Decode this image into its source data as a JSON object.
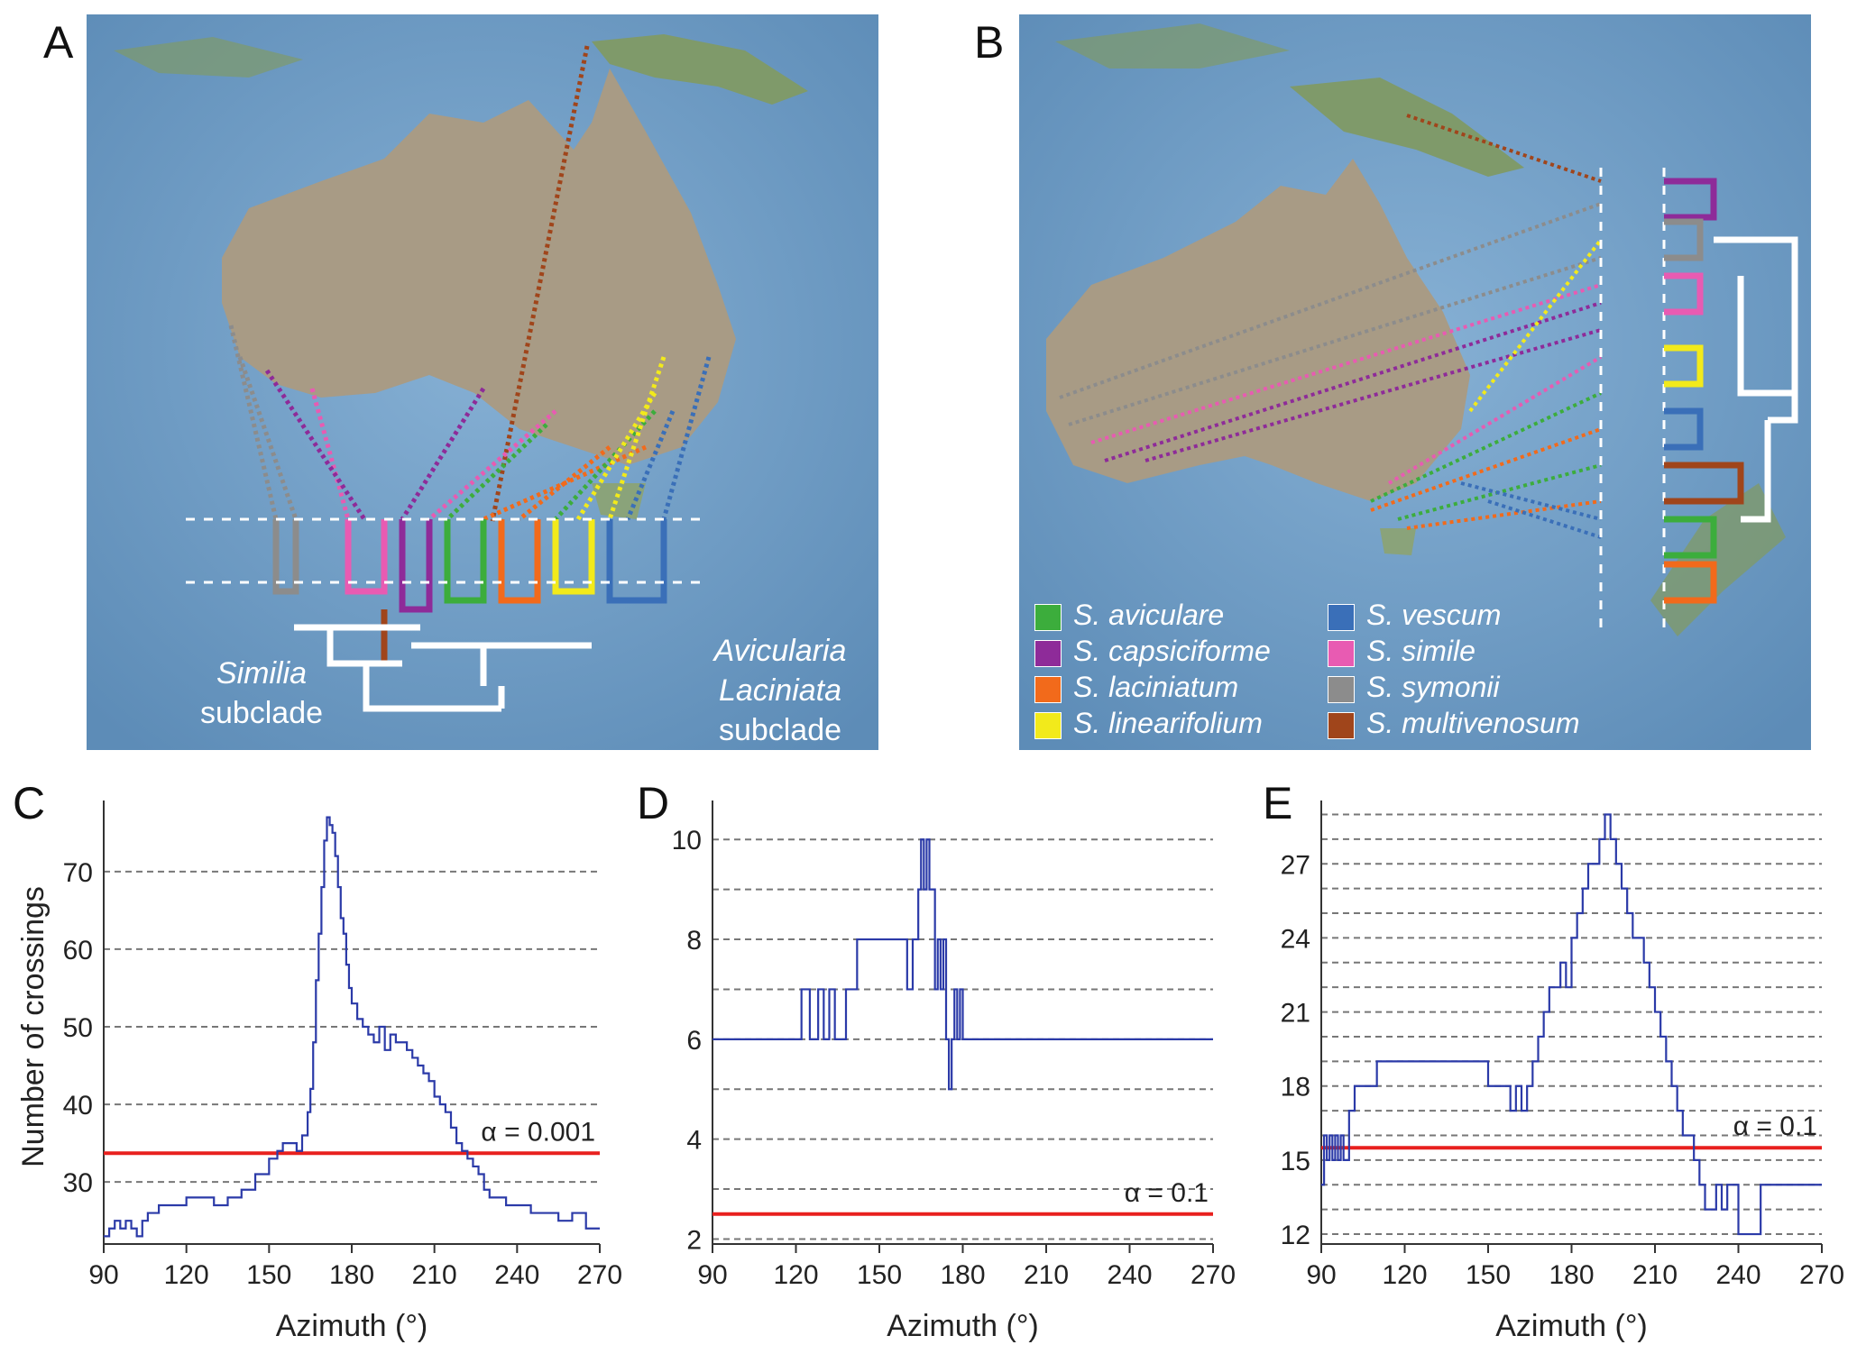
{
  "panels": {
    "a": {
      "letter": "A"
    },
    "b": {
      "letter": "B"
    },
    "c": {
      "letter": "C"
    },
    "d": {
      "letter": "D"
    },
    "e": {
      "letter": "E"
    }
  },
  "subclades": {
    "similia": {
      "name": "Similia",
      "word": "subclade"
    },
    "avicularia": {
      "name1": "Avicularia",
      "name2": "Laciniata",
      "word": "subclade"
    }
  },
  "legend": [
    {
      "species": "S. aviculare",
      "color": "#3cad3c"
    },
    {
      "species": "S. capsiciforme",
      "color": "#8e2b99"
    },
    {
      "species": "S. laciniatum",
      "color": "#f26a1b"
    },
    {
      "species": "S. linearifolium",
      "color": "#f2ea1b"
    },
    {
      "species": "S. vescum",
      "color": "#3a6fb8"
    },
    {
      "species": "S. simile",
      "color": "#e85bb2"
    },
    {
      "species": "S. symonii",
      "color": "#8c8c8c"
    },
    {
      "species": "S. multivenosum",
      "color": "#a0451b"
    }
  ],
  "colors": {
    "ocean": "#6f9cc3",
    "land": "#a89b85",
    "series": "#2b3aa8",
    "threshold": "#e8201e",
    "grid": "#777777"
  },
  "chart_data": [
    {
      "type": "line",
      "panel": "C",
      "xlabel": "Azimuth (°)",
      "ylabel": "Number of crossings",
      "xlim": [
        90,
        270
      ],
      "ylim": [
        22,
        78
      ],
      "xticks": [
        90,
        120,
        150,
        180,
        210,
        240,
        270
      ],
      "yticks": [
        30,
        40,
        50,
        60,
        70
      ],
      "gridlines": [
        30,
        40,
        50,
        60,
        70
      ],
      "threshold": {
        "value": 33.7,
        "label": "α = 0.001"
      },
      "series": [
        {
          "x": [
            90,
            92,
            94,
            96,
            98,
            100,
            102,
            104,
            106,
            110,
            120,
            130,
            135,
            140,
            145,
            150,
            153,
            155,
            160,
            162,
            164,
            165,
            166,
            167,
            168,
            169,
            170,
            171,
            172,
            173,
            174,
            175,
            176,
            177,
            178,
            179,
            180,
            182,
            184,
            186,
            188,
            190,
            192,
            194,
            196,
            198,
            200,
            202,
            204,
            206,
            208,
            210,
            212,
            214,
            216,
            218,
            220,
            222,
            224,
            226,
            228,
            230,
            233,
            236,
            240,
            245,
            250,
            255,
            260,
            265,
            270
          ],
          "values": [
            23,
            24,
            25,
            24,
            25,
            24,
            23,
            25,
            26,
            27,
            28,
            27,
            28,
            29,
            31,
            33,
            34,
            35,
            34,
            36,
            39,
            42,
            48,
            56,
            62,
            68,
            74,
            77,
            76,
            75,
            72,
            68,
            64,
            62,
            58,
            55,
            53,
            51,
            50,
            49,
            48,
            50,
            47,
            49,
            48,
            48,
            47,
            46,
            45,
            44,
            43,
            41,
            40,
            39,
            37,
            35,
            34,
            33,
            32,
            31,
            29,
            28,
            28,
            27,
            27,
            26,
            26,
            25,
            26,
            24,
            24
          ]
        }
      ]
    },
    {
      "type": "line",
      "panel": "D",
      "xlabel": "Azimuth (°)",
      "ylabel": "",
      "xlim": [
        90,
        270
      ],
      "ylim": [
        1.9,
        10.6
      ],
      "xticks": [
        90,
        120,
        150,
        180,
        210,
        240,
        270
      ],
      "yticks": [
        2,
        4,
        6,
        8,
        10
      ],
      "gridlines": [
        2,
        3,
        4,
        5,
        6,
        7,
        8,
        9,
        10
      ],
      "threshold": {
        "value": 2.5,
        "label": "α = 0.1"
      },
      "series": [
        {
          "x": [
            90,
            122,
            125,
            128,
            130,
            132,
            134,
            136,
            138,
            142,
            160,
            162,
            164,
            165,
            166,
            167,
            168,
            170,
            171,
            172,
            173,
            174,
            175,
            176,
            177,
            178,
            179,
            180,
            270
          ],
          "values": [
            6,
            7,
            6,
            7,
            6,
            7,
            6,
            6,
            7,
            8,
            7,
            8,
            9,
            10,
            9,
            10,
            9,
            7,
            8,
            7,
            8,
            6,
            5,
            6,
            7,
            6,
            7,
            6,
            6
          ]
        }
      ]
    },
    {
      "type": "line",
      "panel": "E",
      "xlabel": "Azimuth (°)",
      "ylabel": "",
      "xlim": [
        90,
        270
      ],
      "ylim": [
        11.6,
        29.2
      ],
      "xticks": [
        90,
        120,
        150,
        180,
        210,
        240,
        270
      ],
      "yticks": [
        12,
        15,
        18,
        21,
        24,
        27
      ],
      "gridlines": [
        12,
        13,
        14,
        15,
        16,
        17,
        18,
        19,
        20,
        21,
        22,
        23,
        24,
        25,
        26,
        27,
        28,
        29
      ],
      "threshold": {
        "value": 15.5,
        "label": "α = 0.1"
      },
      "series": [
        {
          "x": [
            90,
            91,
            92,
            93,
            94,
            95,
            96,
            97,
            98,
            100,
            102,
            104,
            106,
            110,
            148,
            150,
            158,
            160,
            162,
            164,
            166,
            168,
            170,
            172,
            174,
            176,
            178,
            180,
            182,
            184,
            186,
            188,
            190,
            192,
            194,
            196,
            198,
            200,
            202,
            204,
            206,
            208,
            210,
            212,
            214,
            216,
            218,
            220,
            222,
            224,
            226,
            228,
            230,
            232,
            234,
            236,
            240,
            244,
            248,
            252,
            256,
            258,
            262,
            266,
            270
          ],
          "values": [
            14,
            16,
            15,
            16,
            15,
            16,
            15,
            16,
            15,
            17,
            18,
            18,
            18,
            19,
            19,
            18,
            17,
            18,
            17,
            18,
            19,
            20,
            21,
            22,
            22,
            23,
            22,
            24,
            25,
            26,
            27,
            27,
            28,
            29,
            28,
            27,
            26,
            25,
            24,
            24,
            23,
            22,
            21,
            20,
            19,
            18,
            17,
            16,
            16,
            15,
            14,
            13,
            13,
            14,
            13,
            14,
            12,
            12,
            14,
            14,
            14,
            14,
            14,
            14,
            14
          ]
        }
      ]
    }
  ]
}
